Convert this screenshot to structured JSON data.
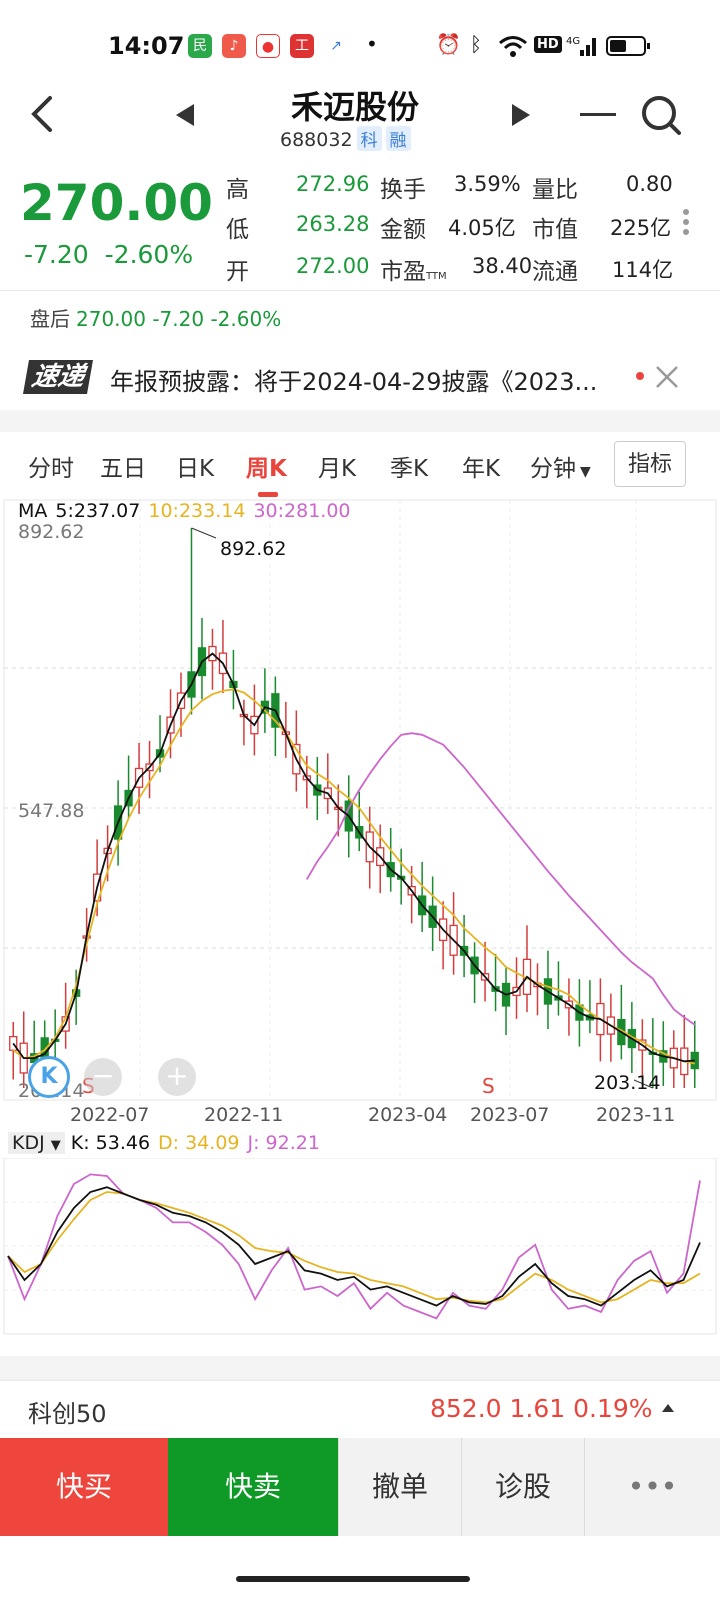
{
  "status_bar": {
    "time": "14:07",
    "icons": [
      "app-1",
      "app-2",
      "app-3",
      "app-4",
      "app-5",
      "dot",
      "alarm-icon",
      "bluetooth-icon",
      "wifi-icon",
      "hd-icon",
      "4g-signal-icon",
      "battery-icon"
    ]
  },
  "header": {
    "title": "禾迈股份",
    "code": "688032",
    "tag1": "科",
    "tag2": "融"
  },
  "quote": {
    "price": "270.00",
    "change": "-7.20",
    "change_pct": "-2.60%",
    "rows": [
      {
        "l1": "高",
        "v1": "272.96",
        "l2": "换手",
        "v2": "3.59%",
        "l3": "量比",
        "v3": "0.80"
      },
      {
        "l1": "低",
        "v1": "263.28",
        "l2": "金额",
        "v2": "4.05亿",
        "l3": "市值",
        "v3": "225亿"
      },
      {
        "l1": "开",
        "v1": "272.00",
        "l2": "市盈",
        "l2sub": "TTM",
        "v2": "38.40",
        "l3": "流通",
        "v3": "114亿"
      }
    ]
  },
  "after_hours": {
    "label": "盘后",
    "value": "270.00 -7.20 -2.60%"
  },
  "news": {
    "logo": "速递",
    "text": "年报预披露：将于2024-04-29披露《2023..."
  },
  "tabs": [
    "分时",
    "五日",
    "日K",
    "周K",
    "月K",
    "季K",
    "年K",
    "分钟"
  ],
  "active_tab": "周K",
  "indicator_button": "指标",
  "ma": {
    "label": "MA",
    "ma5": "5:237.07",
    "ma10": "10:233.14",
    "ma30": "30:281.00"
  },
  "colors": {
    "up": "#d63b3b",
    "down": "#1a8a2e",
    "ma5": "#111111",
    "ma10": "#e6b422",
    "ma30": "#cc66cc"
  },
  "chart_data": {
    "type": "candlestick",
    "y_axis_labels": [
      "892.62",
      "547.88",
      "203.14"
    ],
    "x_axis_labels": [
      "2022-07",
      "2022-11",
      "2023-04",
      "2023-07",
      "2023-11"
    ],
    "annotations": {
      "high": "892.62",
      "low": "203.14"
    },
    "signals": [
      "S",
      "S"
    ],
    "ylim": [
      203.14,
      892.62
    ],
    "ma5": [
      258,
      240,
      240,
      245,
      262,
      282,
      320,
      390,
      450,
      495,
      530,
      560,
      585,
      598,
      615,
      650,
      680,
      700,
      728,
      738,
      726,
      700,
      662,
      650,
      672,
      668,
      640,
      608,
      585,
      570,
      566,
      548,
      538,
      518,
      500,
      488,
      472,
      462,
      446,
      428,
      414,
      398,
      385,
      372,
      354,
      340,
      325,
      318,
      322,
      340,
      330,
      322,
      314,
      306,
      296,
      290,
      288,
      280,
      272,
      264,
      256,
      246,
      242,
      240,
      236,
      237
    ],
    "ma10": [
      250,
      240,
      242,
      250,
      265,
      290,
      330,
      380,
      430,
      470,
      505,
      535,
      560,
      580,
      600,
      625,
      648,
      668,
      680,
      688,
      692,
      694,
      690,
      680,
      668,
      655,
      640,
      620,
      600,
      590,
      582,
      570,
      560,
      548,
      530,
      512,
      496,
      480,
      466,
      452,
      440,
      428,
      416,
      400,
      388,
      376,
      366,
      352,
      345,
      338,
      332,
      328,
      324,
      318,
      306,
      296,
      288,
      280,
      274,
      266,
      260,
      252,
      246,
      240,
      236,
      233.14
    ],
    "ma30": [
      null,
      null,
      null,
      null,
      null,
      null,
      null,
      null,
      null,
      null,
      null,
      null,
      null,
      null,
      null,
      null,
      null,
      null,
      null,
      null,
      null,
      null,
      null,
      null,
      null,
      null,
      null,
      null,
      460,
      482,
      500,
      520,
      548,
      570,
      590,
      608,
      624,
      638,
      640,
      638,
      632,
      626,
      612,
      598,
      582,
      566,
      550,
      534,
      518,
      502,
      486,
      470,
      455,
      440,
      426,
      412,
      398,
      384,
      370,
      358,
      348,
      338,
      318,
      300,
      290,
      281.0
    ],
    "kdj": {
      "K": "53.46",
      "D": "34.09",
      "J": "92.21",
      "k_values": [
        45,
        30,
        40,
        60,
        75,
        85,
        88,
        84,
        80,
        77,
        72,
        70,
        66,
        60,
        52,
        40,
        44,
        48,
        36,
        34,
        30,
        32,
        24,
        26,
        22,
        18,
        14,
        20,
        16,
        15,
        20,
        32,
        40,
        28,
        20,
        18,
        14,
        22,
        30,
        36,
        26,
        30,
        53.46
      ],
      "d_values": [
        45,
        35,
        40,
        55,
        68,
        80,
        85,
        84,
        80,
        78,
        75,
        72,
        68,
        64,
        58,
        50,
        48,
        47,
        42,
        38,
        35,
        34,
        30,
        28,
        26,
        22,
        18,
        19,
        17,
        16,
        18,
        26,
        34,
        30,
        24,
        20,
        16,
        18,
        24,
        30,
        28,
        28,
        34.09
      ],
      "j_values": [
        45,
        18,
        40,
        70,
        90,
        96,
        95,
        84,
        80,
        75,
        66,
        66,
        60,
        52,
        40,
        18,
        36,
        50,
        24,
        26,
        20,
        28,
        12,
        22,
        14,
        10,
        6,
        22,
        14,
        12,
        24,
        44,
        52,
        24,
        12,
        14,
        10,
        30,
        42,
        48,
        22,
        34,
        92.21
      ]
    }
  },
  "kdj_label": {
    "name": "KDJ",
    "k": "K: 53.46",
    "d": "D: 34.09",
    "j": "J: 92.21"
  },
  "index_bar": {
    "name": "科创50",
    "value": "852.0 1.61 0.19%"
  },
  "bottom_buttons": {
    "buy": "快买",
    "sell": "快卖",
    "cancel": "撤单",
    "diagnose": "诊股",
    "more": "•••"
  }
}
